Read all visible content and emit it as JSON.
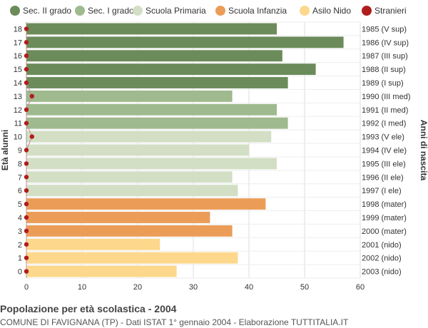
{
  "chart_data": {
    "type": "bar",
    "orientation": "horizontal",
    "title": "Popolazione per età scolastica - 2004",
    "subtitle": "COMUNE DI FAVIGNANA (TP) - Dati ISTAT 1° gennaio 2004 - Elaborazione TUTTITALIA.IT",
    "ylabel_left": "Età alunni",
    "ylabel_right": "Anni di nascita",
    "xlim": [
      0,
      60
    ],
    "xticks": [
      0,
      10,
      20,
      30,
      40,
      50,
      60
    ],
    "grid": true,
    "legend_position": "top",
    "legend": [
      {
        "name": "Sec. II grado",
        "color": "#6b8c5a"
      },
      {
        "name": "Sec. I grado",
        "color": "#9fba8e"
      },
      {
        "name": "Scuola Primaria",
        "color": "#d3dfc5"
      },
      {
        "name": "Scuola Infanzia",
        "color": "#eb9d58"
      },
      {
        "name": "Asilo Nido",
        "color": "#fdd78c"
      },
      {
        "name": "Stranieri",
        "color": "#b01d1d"
      }
    ],
    "categories": [
      "18",
      "17",
      "16",
      "15",
      "14",
      "13",
      "12",
      "11",
      "10",
      "9",
      "8",
      "7",
      "6",
      "5",
      "4",
      "3",
      "2",
      "1",
      "0"
    ],
    "birth_years": [
      "1985 (V sup)",
      "1986 (IV sup)",
      "1987 (III sup)",
      "1988 (II sup)",
      "1989 (I sup)",
      "1990 (III med)",
      "1991 (II med)",
      "1992 (I med)",
      "1993 (V ele)",
      "1994 (IV ele)",
      "1995 (III ele)",
      "1996 (II ele)",
      "1997 (I ele)",
      "1998 (mater)",
      "1999 (mater)",
      "2000 (mater)",
      "2001 (nido)",
      "2002 (nido)",
      "2003 (nido)"
    ],
    "values": [
      45,
      57,
      46,
      52,
      47,
      37,
      45,
      47,
      44,
      40,
      45,
      37,
      38,
      43,
      33,
      37,
      24,
      38,
      27
    ],
    "groups": [
      0,
      0,
      0,
      0,
      0,
      1,
      1,
      1,
      2,
      2,
      2,
      2,
      2,
      3,
      3,
      3,
      4,
      4,
      4
    ],
    "stranieri": [
      0,
      0,
      0,
      0,
      0,
      1,
      0,
      0,
      1,
      0,
      0,
      0,
      0,
      0,
      0,
      0,
      0,
      0,
      0
    ]
  }
}
